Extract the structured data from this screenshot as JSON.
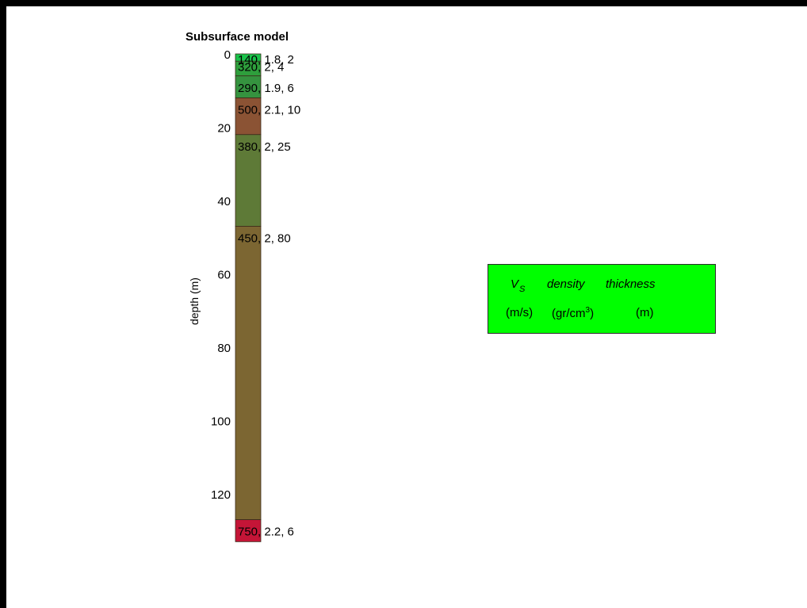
{
  "chart_data": {
    "type": "bar",
    "title": "Subsurface model",
    "ylabel": "depth (m)",
    "ylim": [
      0,
      134
    ],
    "y_reversed": true,
    "yticks": [
      "0",
      "20",
      "40",
      "60",
      "80",
      "100",
      "120"
    ],
    "ytick_values": [
      0,
      20,
      40,
      60,
      80,
      100,
      120
    ],
    "layers": [
      {
        "vs": "140",
        "density": "1.8",
        "thickness": 2,
        "thickness_label": "2",
        "label_rest": ", 1.8, 2",
        "color": "#19c34a"
      },
      {
        "vs": "320",
        "density": "2",
        "thickness": 4,
        "thickness_label": "4",
        "label_rest": ", 2, 4",
        "color": "#2e9f3c"
      },
      {
        "vs": "290",
        "density": "1.9",
        "thickness": 6,
        "thickness_label": "6",
        "label_rest": ", 1.9, 6",
        "color": "#35933f"
      },
      {
        "vs": "500",
        "density": "2.1",
        "thickness": 10,
        "thickness_label": "10",
        "label_rest": ", 2.1, 10",
        "color": "#8b5334"
      },
      {
        "vs": "380",
        "density": "2",
        "thickness": 25,
        "thickness_label": "25",
        "label_rest": ", 2, 25",
        "color": "#5e7a37"
      },
      {
        "vs": "450",
        "density": "2",
        "thickness": 80,
        "thickness_label": "80",
        "label_rest": ", 2, 80",
        "color": "#7c6632"
      },
      {
        "vs": "750",
        "density": "2.2",
        "thickness": 6,
        "thickness_label": "6",
        "label_rest": ", 2.2, 6",
        "color": "#c41537"
      }
    ],
    "legend": {
      "vs_symbol": "V",
      "vs_subscript": "S",
      "density": "density",
      "thickness": "thickness",
      "vs_unit": "(m/s)",
      "density_unit_prefix": "(gr/cm",
      "density_unit_exponent": "3",
      "density_unit_suffix": ")",
      "thickness_unit": "(m)",
      "color": "#00ff00"
    }
  }
}
